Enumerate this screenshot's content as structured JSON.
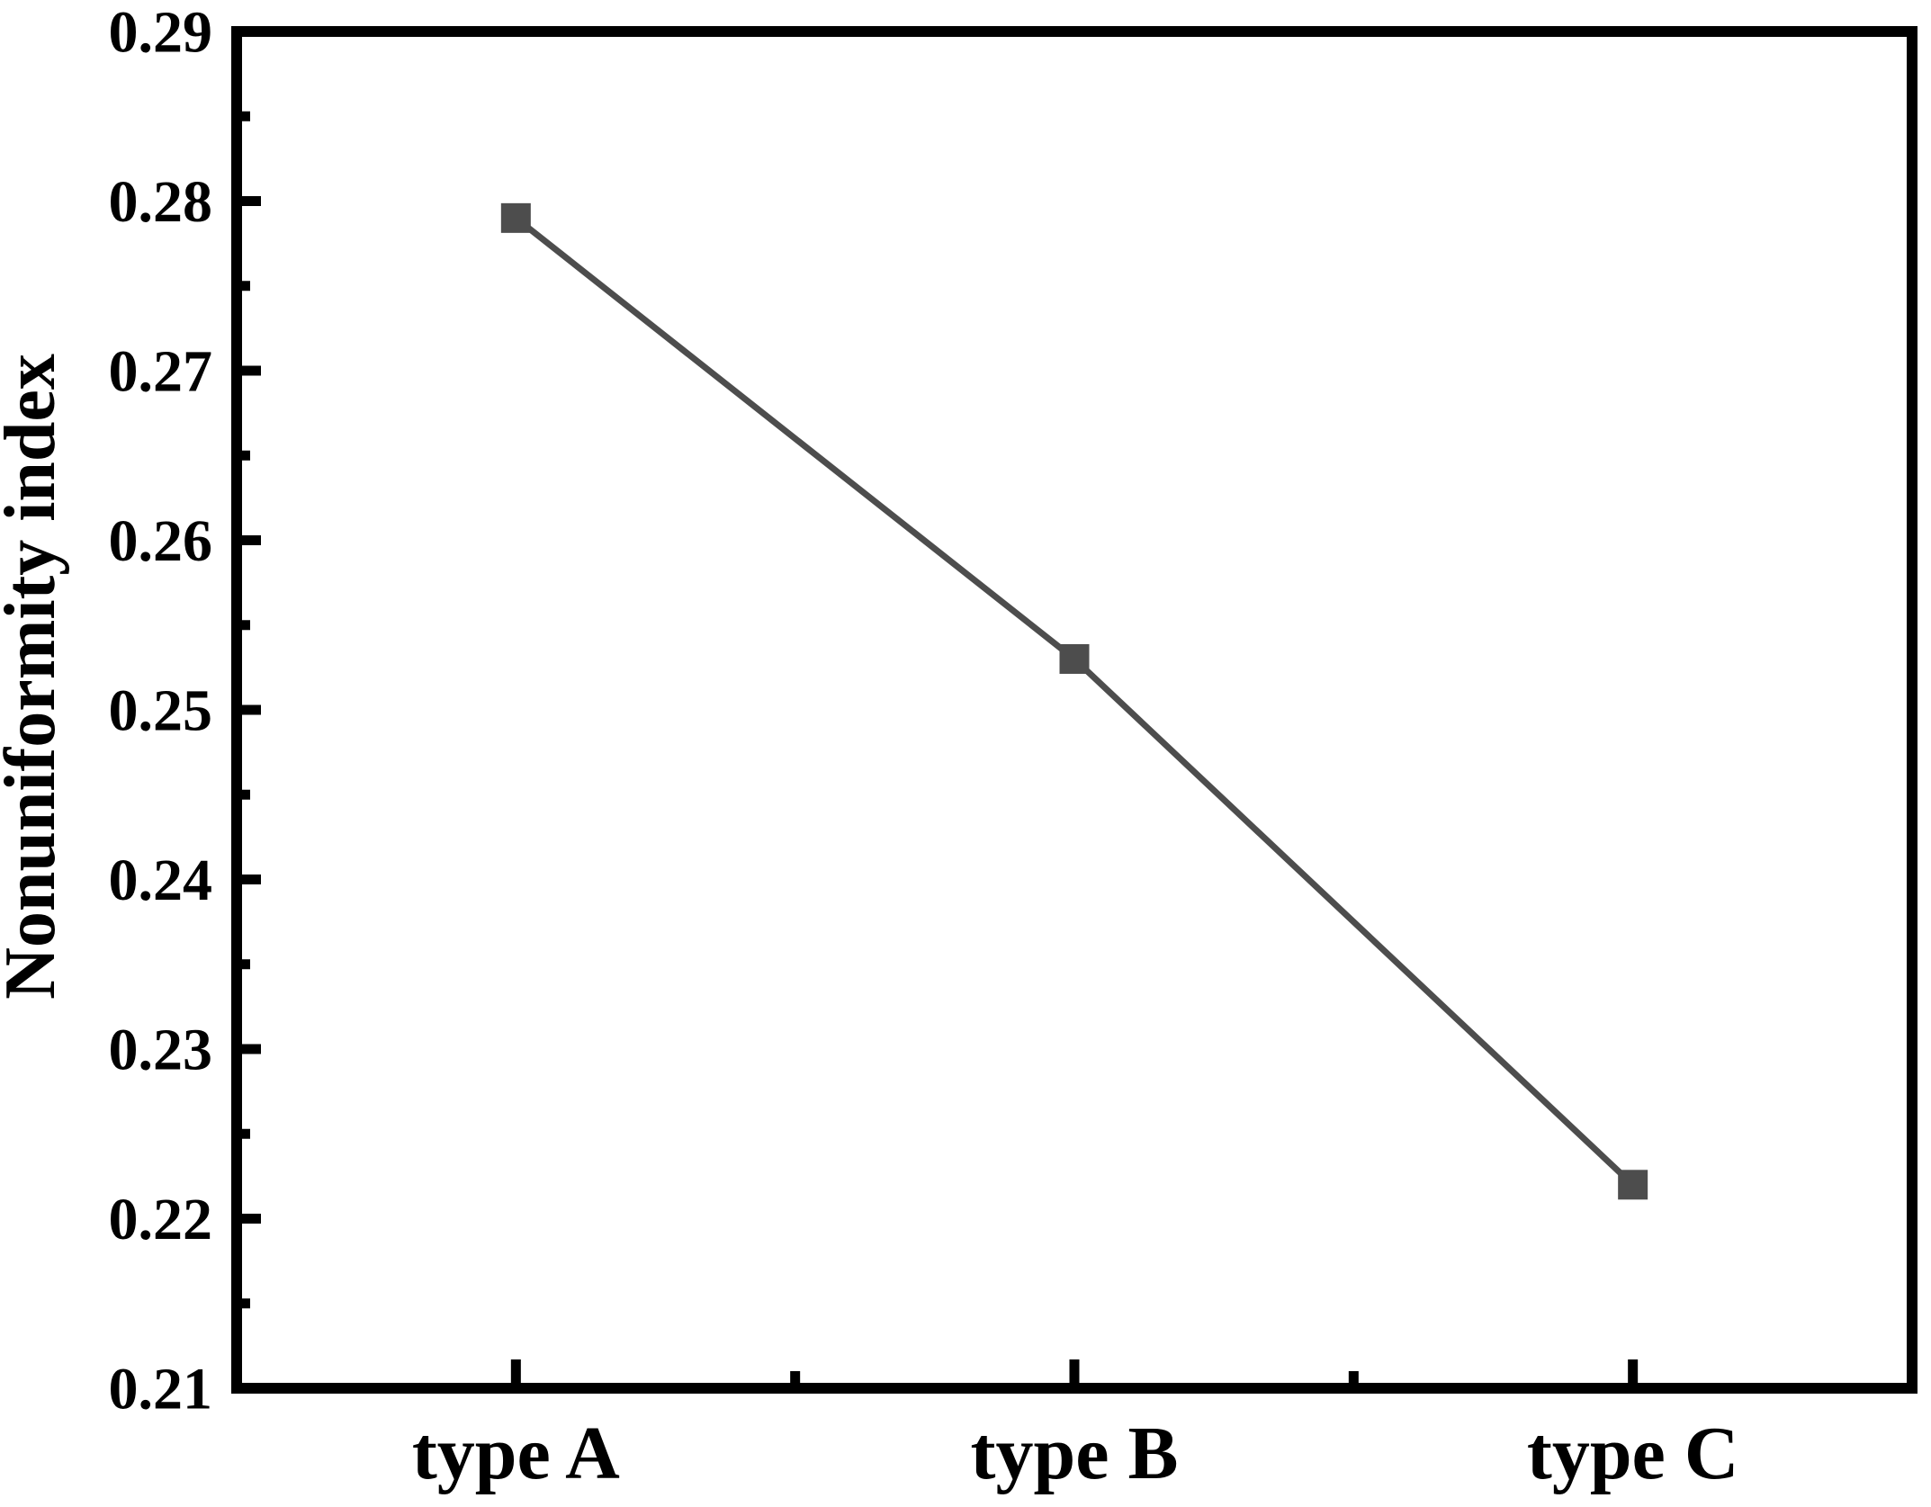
{
  "figure": {
    "background_color": "#ffffff",
    "axis_color": "#000000",
    "series_color": "#4d4d4d"
  },
  "chart_data": {
    "type": "line",
    "title": "",
    "xlabel": "",
    "ylabel": "Nonuniformity index",
    "categories": [
      "type A",
      "type B",
      "type C"
    ],
    "series": [
      {
        "name": "Nonuniformity index",
        "values": [
          0.279,
          0.253,
          0.222
        ],
        "marker": "square",
        "color": "#4d4d4d"
      }
    ],
    "ylim": [
      0.21,
      0.29
    ],
    "y_major_step": 0.01,
    "y_minor_step": 0.005,
    "y_tick_labels": [
      "0.21",
      "0.22",
      "0.23",
      "0.24",
      "0.25",
      "0.26",
      "0.27",
      "0.28",
      "0.29"
    ],
    "grid": false,
    "legend_position": "none",
    "tick_direction": "in",
    "frame": "full-box"
  }
}
